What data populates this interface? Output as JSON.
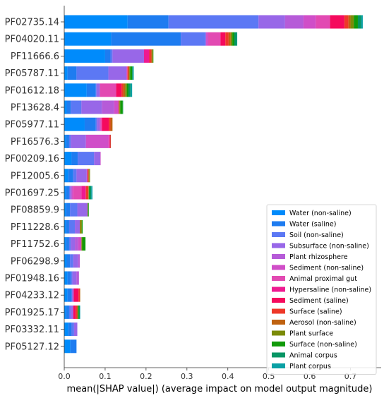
{
  "chart_data": {
    "type": "bar",
    "orientation": "horizontal",
    "stacked": true,
    "xlabel": "mean(|SHAP value|) (average impact on model output magnitude)",
    "ylabel": "",
    "xlim": [
      0,
      0.775
    ],
    "xticks": [
      0.0,
      0.1,
      0.2,
      0.3,
      0.4,
      0.5,
      0.6,
      0.7
    ],
    "xtick_labels": [
      "0.0",
      "0.1",
      "0.2",
      "0.3",
      "0.4",
      "0.5",
      "0.6",
      "0.7"
    ],
    "legend_position": "lower-right",
    "grid": false,
    "categories": [
      "PF02735.14",
      "PF04020.11",
      "PF11666.6",
      "PF05787.11",
      "PF01612.18",
      "PF13628.4",
      "PF05977.11",
      "PF16576.3",
      "PF00209.16",
      "PF12005.6",
      "PF01697.25",
      "PF08859.9",
      "PF11228.6",
      "PF11752.6",
      "PF06298.9",
      "PF01948.16",
      "PF04233.12",
      "PF01925.17",
      "PF03332.11",
      "PF05127.12"
    ],
    "series": [
      {
        "name": "Water (non-saline)",
        "color": "#008bfb",
        "values": [
          0.155,
          0.115,
          0.1,
          0.008,
          0.055,
          0.006,
          0.05,
          0.004,
          0.018,
          0.01,
          0.004,
          0.004,
          0.004,
          0.004,
          0.006,
          0.008,
          0.008,
          0.004,
          0.01,
          0.015
        ]
      },
      {
        "name": "Water (saline)",
        "color": "#1e7cf0",
        "values": [
          0.1,
          0.17,
          0.013,
          0.022,
          0.022,
          0.01,
          0.027,
          0.008,
          0.015,
          0.012,
          0.008,
          0.01,
          0.008,
          0.008,
          0.008,
          0.008,
          0.01,
          0.008,
          0.008,
          0.015
        ]
      },
      {
        "name": "Soil (non-saline)",
        "color": "#5c78f4",
        "values": [
          0.22,
          0.06,
          0.005,
          0.078,
          0.002,
          0.026,
          0.003,
          0.004,
          0.04,
          0.008,
          0.002,
          0.018,
          0.014,
          0.004,
          0.008,
          0.004,
          0.001,
          0.004,
          0.006,
          0.0
        ]
      },
      {
        "name": "Subsurface (non-saline)",
        "color": "#9867e8",
        "values": [
          0.065,
          0.002,
          0.077,
          0.044,
          0.008,
          0.05,
          0.007,
          0.037,
          0.015,
          0.025,
          0.004,
          0.024,
          0.012,
          0.01,
          0.012,
          0.01,
          0.004,
          0.006,
          0.008,
          0.0
        ]
      },
      {
        "name": "Plant rhizosphere",
        "color": "#b65bd8",
        "values": [
          0.045,
          0.0,
          0.0,
          0.0,
          0.0,
          0.03,
          0.0,
          0.0,
          0.0,
          0.0,
          0.0,
          0.0,
          0.0,
          0.008,
          0.004,
          0.006,
          0.0,
          0.0,
          0.0,
          0.0
        ]
      },
      {
        "name": "Sediment (non-saline)",
        "color": "#d04ec8",
        "values": [
          0.03,
          0.005,
          0.0,
          0.002,
          0.0,
          0.01,
          0.002,
          0.055,
          0.001,
          0.002,
          0.004,
          0.001,
          0.0,
          0.008,
          0.0,
          0.0,
          0.0,
          0.0,
          0.0,
          0.0
        ]
      },
      {
        "name": "Animal proximal gut",
        "color": "#e24ab2",
        "values": [
          0.035,
          0.03,
          0.0,
          0.0,
          0.04,
          0.001,
          0.002,
          0.003,
          0.0,
          0.0,
          0.02,
          0.0,
          0.0,
          0.0,
          0.0,
          0.0,
          0.0,
          0.0,
          0.0,
          0.0
        ]
      },
      {
        "name": "Hypersaline (non-saline)",
        "color": "#ee1a91",
        "values": [
          0.0,
          0.0,
          0.013,
          0.0,
          0.0,
          0.0,
          0.002,
          0.0,
          0.0,
          0.0,
          0.01,
          0.0,
          0.0,
          0.0,
          0.0,
          0.0,
          0.0,
          0.0,
          0.0,
          0.0
        ]
      },
      {
        "name": "Sediment (saline)",
        "color": "#f50a5d",
        "values": [
          0.035,
          0.012,
          0.0,
          0.001,
          0.013,
          0.0,
          0.016,
          0.002,
          0.0,
          0.0,
          0.001,
          0.0,
          0.0,
          0.0,
          0.0,
          0.0,
          0.012,
          0.006,
          0.0,
          0.0
        ]
      },
      {
        "name": "Surface (saline)",
        "color": "#ee3829",
        "values": [
          0.01,
          0.008,
          0.005,
          0.002,
          0.004,
          0.0,
          0.004,
          0.0,
          0.0,
          0.002,
          0.006,
          0.0,
          0.0,
          0.0,
          0.0,
          0.0,
          0.003,
          0.004,
          0.0,
          0.0
        ]
      },
      {
        "name": "Aerosol (non-saline)",
        "color": "#bf6210",
        "values": [
          0.005,
          0.005,
          0.002,
          0.002,
          0.005,
          0.002,
          0.005,
          0.001,
          0.0,
          0.002,
          0.001,
          0.0,
          0.001,
          0.0,
          0.0,
          0.0,
          0.001,
          0.001,
          0.0,
          0.0
        ]
      },
      {
        "name": "Plant surface",
        "color": "#7b8b08",
        "values": [
          0.008,
          0.004,
          0.002,
          0.002,
          0.004,
          0.002,
          0.0,
          0.0,
          0.0,
          0.002,
          0.0,
          0.001,
          0.004,
          0.002,
          0.0,
          0.0,
          0.0,
          0.0,
          0.0,
          0.0
        ]
      },
      {
        "name": "Surface (non-saline)",
        "color": "#119a09",
        "values": [
          0.01,
          0.005,
          0.001,
          0.005,
          0.004,
          0.006,
          0.0,
          0.0,
          0.0,
          0.0,
          0.002,
          0.002,
          0.002,
          0.008,
          0.0,
          0.0,
          0.0,
          0.003,
          0.0,
          0.0
        ]
      },
      {
        "name": "Animal corpus",
        "color": "#079665",
        "values": [
          0.008,
          0.006,
          0.0,
          0.002,
          0.005,
          0.001,
          0.0,
          0.0,
          0.0,
          0.0,
          0.004,
          0.0,
          0.0,
          0.0,
          0.0,
          0.0,
          0.0,
          0.002,
          0.0,
          0.0
        ]
      },
      {
        "name": "Plant corpus",
        "color": "#0aa0a4",
        "values": [
          0.004,
          0.001,
          0.0,
          0.002,
          0.004,
          0.0,
          0.0,
          0.0,
          0.0,
          0.0,
          0.003,
          0.0,
          0.0,
          0.0,
          0.0,
          0.0,
          0.0,
          0.001,
          0.0,
          0.0
        ]
      }
    ]
  }
}
